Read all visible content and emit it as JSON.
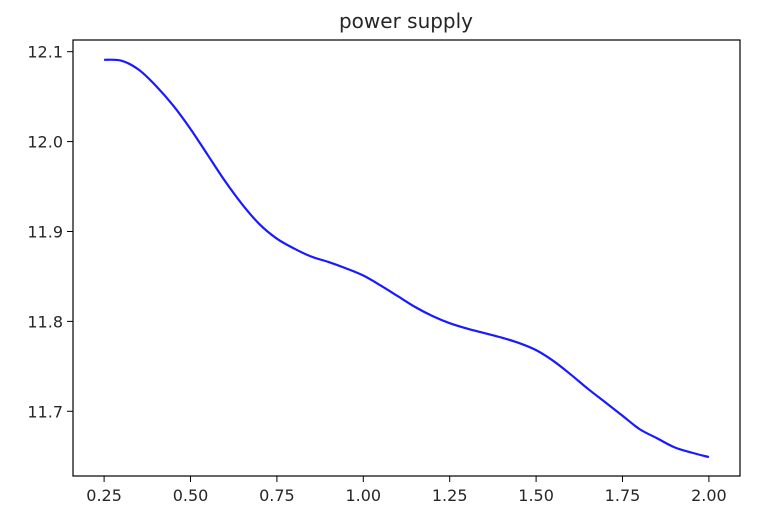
{
  "chart_data": {
    "type": "line",
    "title": "power supply",
    "xlabel": "",
    "ylabel": "",
    "xlim": [
      0.16,
      2.09
    ],
    "ylim": [
      11.628,
      12.113
    ],
    "x_ticks": [
      "0.25",
      "0.50",
      "0.75",
      "1.00",
      "1.25",
      "1.50",
      "1.75",
      "2.00"
    ],
    "y_ticks": [
      "11.7",
      "11.8",
      "11.9",
      "12.0",
      "12.1"
    ],
    "grid": false,
    "series": [
      {
        "color": "#1a1aff",
        "x": [
          0.25,
          0.3,
          0.35,
          0.4,
          0.45,
          0.5,
          0.55,
          0.6,
          0.65,
          0.7,
          0.75,
          0.8,
          0.85,
          0.9,
          0.95,
          1.0,
          1.05,
          1.1,
          1.15,
          1.2,
          1.25,
          1.3,
          1.35,
          1.4,
          1.45,
          1.5,
          1.55,
          1.6,
          1.65,
          1.7,
          1.75,
          1.8,
          1.85,
          1.9,
          1.95,
          2.0
        ],
        "y": [
          12.091,
          12.09,
          12.08,
          12.062,
          12.04,
          12.014,
          11.985,
          11.956,
          11.93,
          11.908,
          11.892,
          11.881,
          11.872,
          11.866,
          11.859,
          11.851,
          11.84,
          11.828,
          11.816,
          11.806,
          11.798,
          11.792,
          11.787,
          11.782,
          11.776,
          11.768,
          11.756,
          11.741,
          11.725,
          11.71,
          11.695,
          11.68,
          11.67,
          11.66,
          11.654,
          11.649
        ]
      }
    ]
  }
}
